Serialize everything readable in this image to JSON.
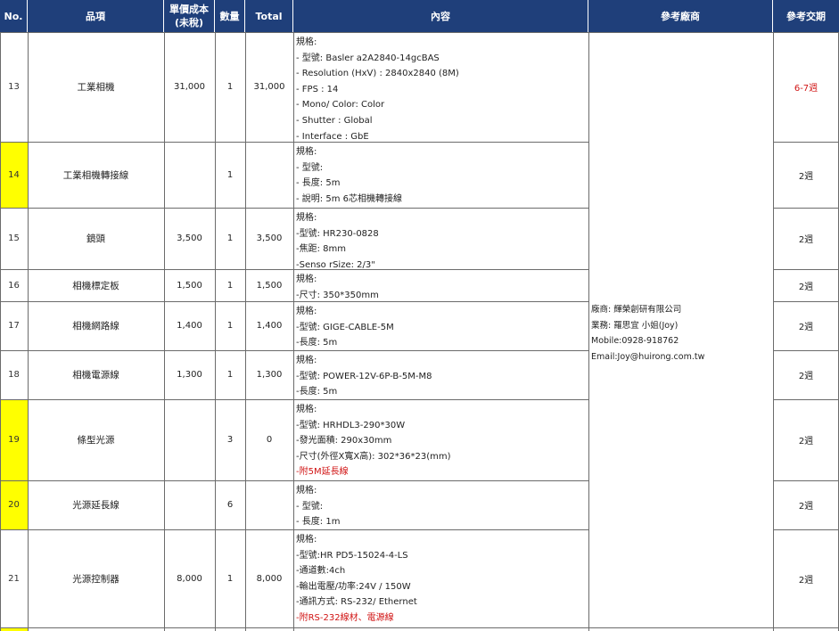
{
  "headers": {
    "no": "No.",
    "item": "品項",
    "unit_cost": "單價成本\n(未稅)",
    "qty": "數量",
    "total": "Total",
    "content": "內容",
    "vendor": "參考廠商",
    "lead_time": "參考交期"
  },
  "rows": [
    {
      "no": "13",
      "item": "工業相機",
      "unit_cost": "31,000",
      "qty": "1",
      "total": "31,000",
      "lines": [
        "規格:",
        "- 型號: Basler a2A2840-14gcBAS",
        "- Resolution (HxV) : 2840x2840 (8M)",
        "- FPS : 14",
        "- Mono/ Color: Color",
        "- Shutter : Global",
        "- Interface : GbE"
      ],
      "red_lines": [],
      "lead": "6-7週",
      "lead_red": true
    },
    {
      "no": "14",
      "item": "工業相機轉接線",
      "unit_cost": "",
      "qty": "1",
      "total": "",
      "lines": [
        "規格:",
        "- 型號:",
        "- 長度: 5m",
        "- 說明: 5m 6芯相機轉接線"
      ],
      "red_lines": [],
      "lead": "2週",
      "lead_red": false
    },
    {
      "no": "15",
      "item": "鏡頭",
      "unit_cost": "3,500",
      "qty": "1",
      "total": "3,500",
      "lines": [
        "規格:",
        "-型號: HR230-0828",
        "-焦距: 8mm",
        "-Senso rSize: 2/3\""
      ],
      "red_lines": [],
      "lead": "2週",
      "lead_red": false
    },
    {
      "no": "16",
      "item": "相機標定板",
      "unit_cost": "1,500",
      "qty": "1",
      "total": "1,500",
      "lines": [
        "規格:",
        "-尺寸: 350*350mm"
      ],
      "red_lines": [],
      "lead": "2週",
      "lead_red": false
    },
    {
      "no": "17",
      "item": "相機網路線",
      "unit_cost": "1,400",
      "qty": "1",
      "total": "1,400",
      "lines": [
        "規格:",
        "-型號: GIGE-CABLE-5M",
        "-長度: 5m"
      ],
      "red_lines": [],
      "lead": "2週",
      "lead_red": false
    },
    {
      "no": "18",
      "item": "相機電源線",
      "unit_cost": "1,300",
      "qty": "1",
      "total": "1,300",
      "lines": [
        "規格:",
        "-型號: POWER-12V-6P-B-5M-M8",
        "-長度: 5m"
      ],
      "red_lines": [],
      "lead": "2週",
      "lead_red": false
    },
    {
      "no": "19",
      "item": "條型光源",
      "unit_cost": "",
      "qty": "3",
      "total": "0",
      "lines": [
        "規格:",
        "-型號: HRHDL3-290*30W",
        "-發光面積: 290x30mm",
        "-尺寸(外徑X寬X高): 302*36*23(mm)"
      ],
      "red_lines": [
        "-附5M延長線"
      ],
      "lead": "2週",
      "lead_red": false
    },
    {
      "no": "20",
      "item": "光源延長線",
      "unit_cost": "",
      "qty": "6",
      "total": "",
      "lines": [
        "規格:",
        "- 型號:",
        "- 長度: 1m"
      ],
      "red_lines": [],
      "lead": "2週",
      "lead_red": false
    },
    {
      "no": "21",
      "item": "光源控制器",
      "unit_cost": "8,000",
      "qty": "1",
      "total": "8,000",
      "lines": [
        "規格:",
        "-型號:HR PD5-15024-4-LS",
        "-通道數:4ch",
        "-輸出電壓/功率:24V / 150W",
        "-通訊方式: RS-232/ Ethernet"
      ],
      "red_lines": [
        "-附RS-232線材、電源線"
      ],
      "lead": "2週",
      "lead_red": false
    }
  ],
  "vendor": {
    "company": "廠商: 輝榮創研有限公司",
    "sales": "業務: 羅思宜 小姐(Joy)",
    "mobile": "Mobile:0928-918762",
    "email": "Email:Joy@huirong.com.tw"
  },
  "colors": {
    "header_bg": "#1f3f7a",
    "highlight": "#ffff00",
    "red_text": "#d11515"
  }
}
